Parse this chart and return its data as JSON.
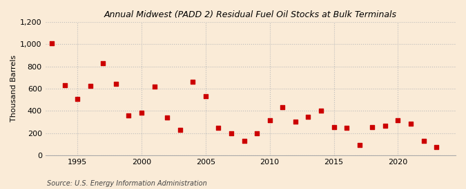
{
  "title": "Annual Midwest (PADD 2) Residual Fuel Oil Stocks at Bulk Terminals",
  "ylabel": "Thousand Barrels",
  "source": "Source: U.S. Energy Information Administration",
  "background_color": "#faebd7",
  "plot_background_color": "#faebd7",
  "marker_color": "#cc0000",
  "years": [
    1993,
    1994,
    1995,
    1996,
    1997,
    1998,
    1999,
    2000,
    2001,
    2002,
    2003,
    2004,
    2005,
    2006,
    2007,
    2008,
    2009,
    2010,
    2011,
    2012,
    2013,
    2014,
    2015,
    2016,
    2017,
    2018,
    2019,
    2020,
    2021,
    2022,
    2023
  ],
  "values": [
    1010,
    630,
    505,
    625,
    830,
    645,
    360,
    385,
    615,
    340,
    230,
    660,
    530,
    245,
    200,
    130,
    195,
    315,
    435,
    300,
    345,
    400,
    250,
    245,
    90,
    255,
    265,
    315,
    285,
    130,
    75
  ],
  "ylim": [
    0,
    1200
  ],
  "yticks": [
    0,
    200,
    400,
    600,
    800,
    1000,
    1200
  ],
  "ytick_labels": [
    "0",
    "200",
    "400",
    "600",
    "800",
    "1,000",
    "1,200"
  ],
  "xlim": [
    1992.5,
    2024.5
  ],
  "xticks": [
    1995,
    2000,
    2005,
    2010,
    2015,
    2020
  ],
  "grid_color": "#bbbbbb",
  "grid_style": ":"
}
